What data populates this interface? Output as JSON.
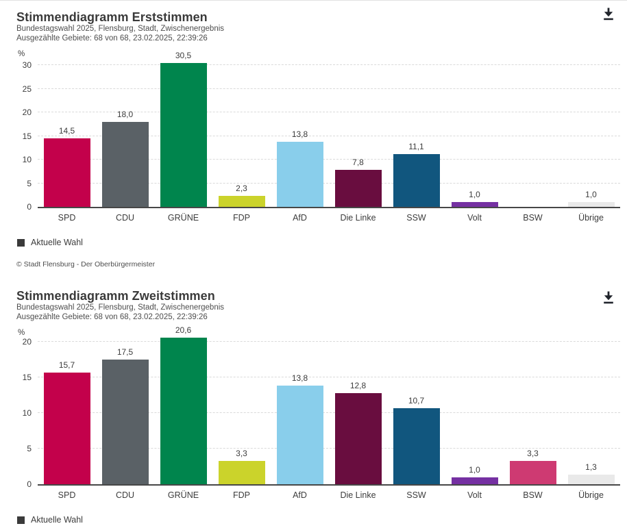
{
  "chart_data": [
    {
      "type": "bar",
      "title": "Stimmendiagramm Erststimmen",
      "subtitle": "Bundestagswahl 2025, Flensburg, Stadt, Zwischenergebnis",
      "status": "Ausgezählte Gebiete: 68 von 68, 23.02.2025, 22:39:26",
      "ylabel": "%",
      "categories": [
        "SPD",
        "CDU",
        "GRÜNE",
        "FDP",
        "AfD",
        "Die Linke",
        "SSW",
        "Volt",
        "BSW",
        "Übrige"
      ],
      "values": [
        14.5,
        18.0,
        30.5,
        2.3,
        13.8,
        7.8,
        11.1,
        1.0,
        null,
        1.0
      ],
      "value_labels": [
        "14,5",
        "18,0",
        "30,5",
        "2,3",
        "13,8",
        "7,8",
        "11,1",
        "1,0",
        "",
        "1,0"
      ],
      "bar_colors": [
        "#c3014b",
        "#5a6166",
        "#00854d",
        "#cbd32b",
        "#89ceeb",
        "#690d3f",
        "#11567e",
        "#7530a2",
        "#ce3a72",
        "#e9e9e9"
      ],
      "ylim": [
        0,
        30
      ],
      "ytick_step": 5,
      "grid": true,
      "legend": [
        "Aktuelle Wahl"
      ],
      "legend_position": "bottom-left",
      "legend_color": "#3a3a3a",
      "footer": "© Stadt Flensburg - Der Oberbürgermeister"
    },
    {
      "type": "bar",
      "title": "Stimmendiagramm Zweitstimmen",
      "subtitle": "Bundestagswahl 2025, Flensburg, Stadt, Zwischenergebnis",
      "status": "Ausgezählte Gebiete: 68 von 68, 23.02.2025, 22:39:26",
      "ylabel": "%",
      "categories": [
        "SPD",
        "CDU",
        "GRÜNE",
        "FDP",
        "AfD",
        "Die Linke",
        "SSW",
        "Volt",
        "BSW",
        "Übrige"
      ],
      "values": [
        15.7,
        17.5,
        20.6,
        3.3,
        13.8,
        12.8,
        10.7,
        1.0,
        3.3,
        1.3
      ],
      "value_labels": [
        "15,7",
        "17,5",
        "20,6",
        "3,3",
        "13,8",
        "12,8",
        "10,7",
        "1,0",
        "3,3",
        "1,3"
      ],
      "bar_colors": [
        "#c3014b",
        "#5a6166",
        "#00854d",
        "#cbd32b",
        "#89ceeb",
        "#690d3f",
        "#11567e",
        "#7530a2",
        "#ce3a72",
        "#e9e9e9"
      ],
      "ylim": [
        0,
        20
      ],
      "ytick_step": 5,
      "grid": true,
      "legend": [
        "Aktuelle Wahl"
      ],
      "legend_position": "bottom-left",
      "legend_color": "#3a3a3a"
    }
  ],
  "icons": {
    "download": "download-icon",
    "download_color": "#20242b"
  }
}
